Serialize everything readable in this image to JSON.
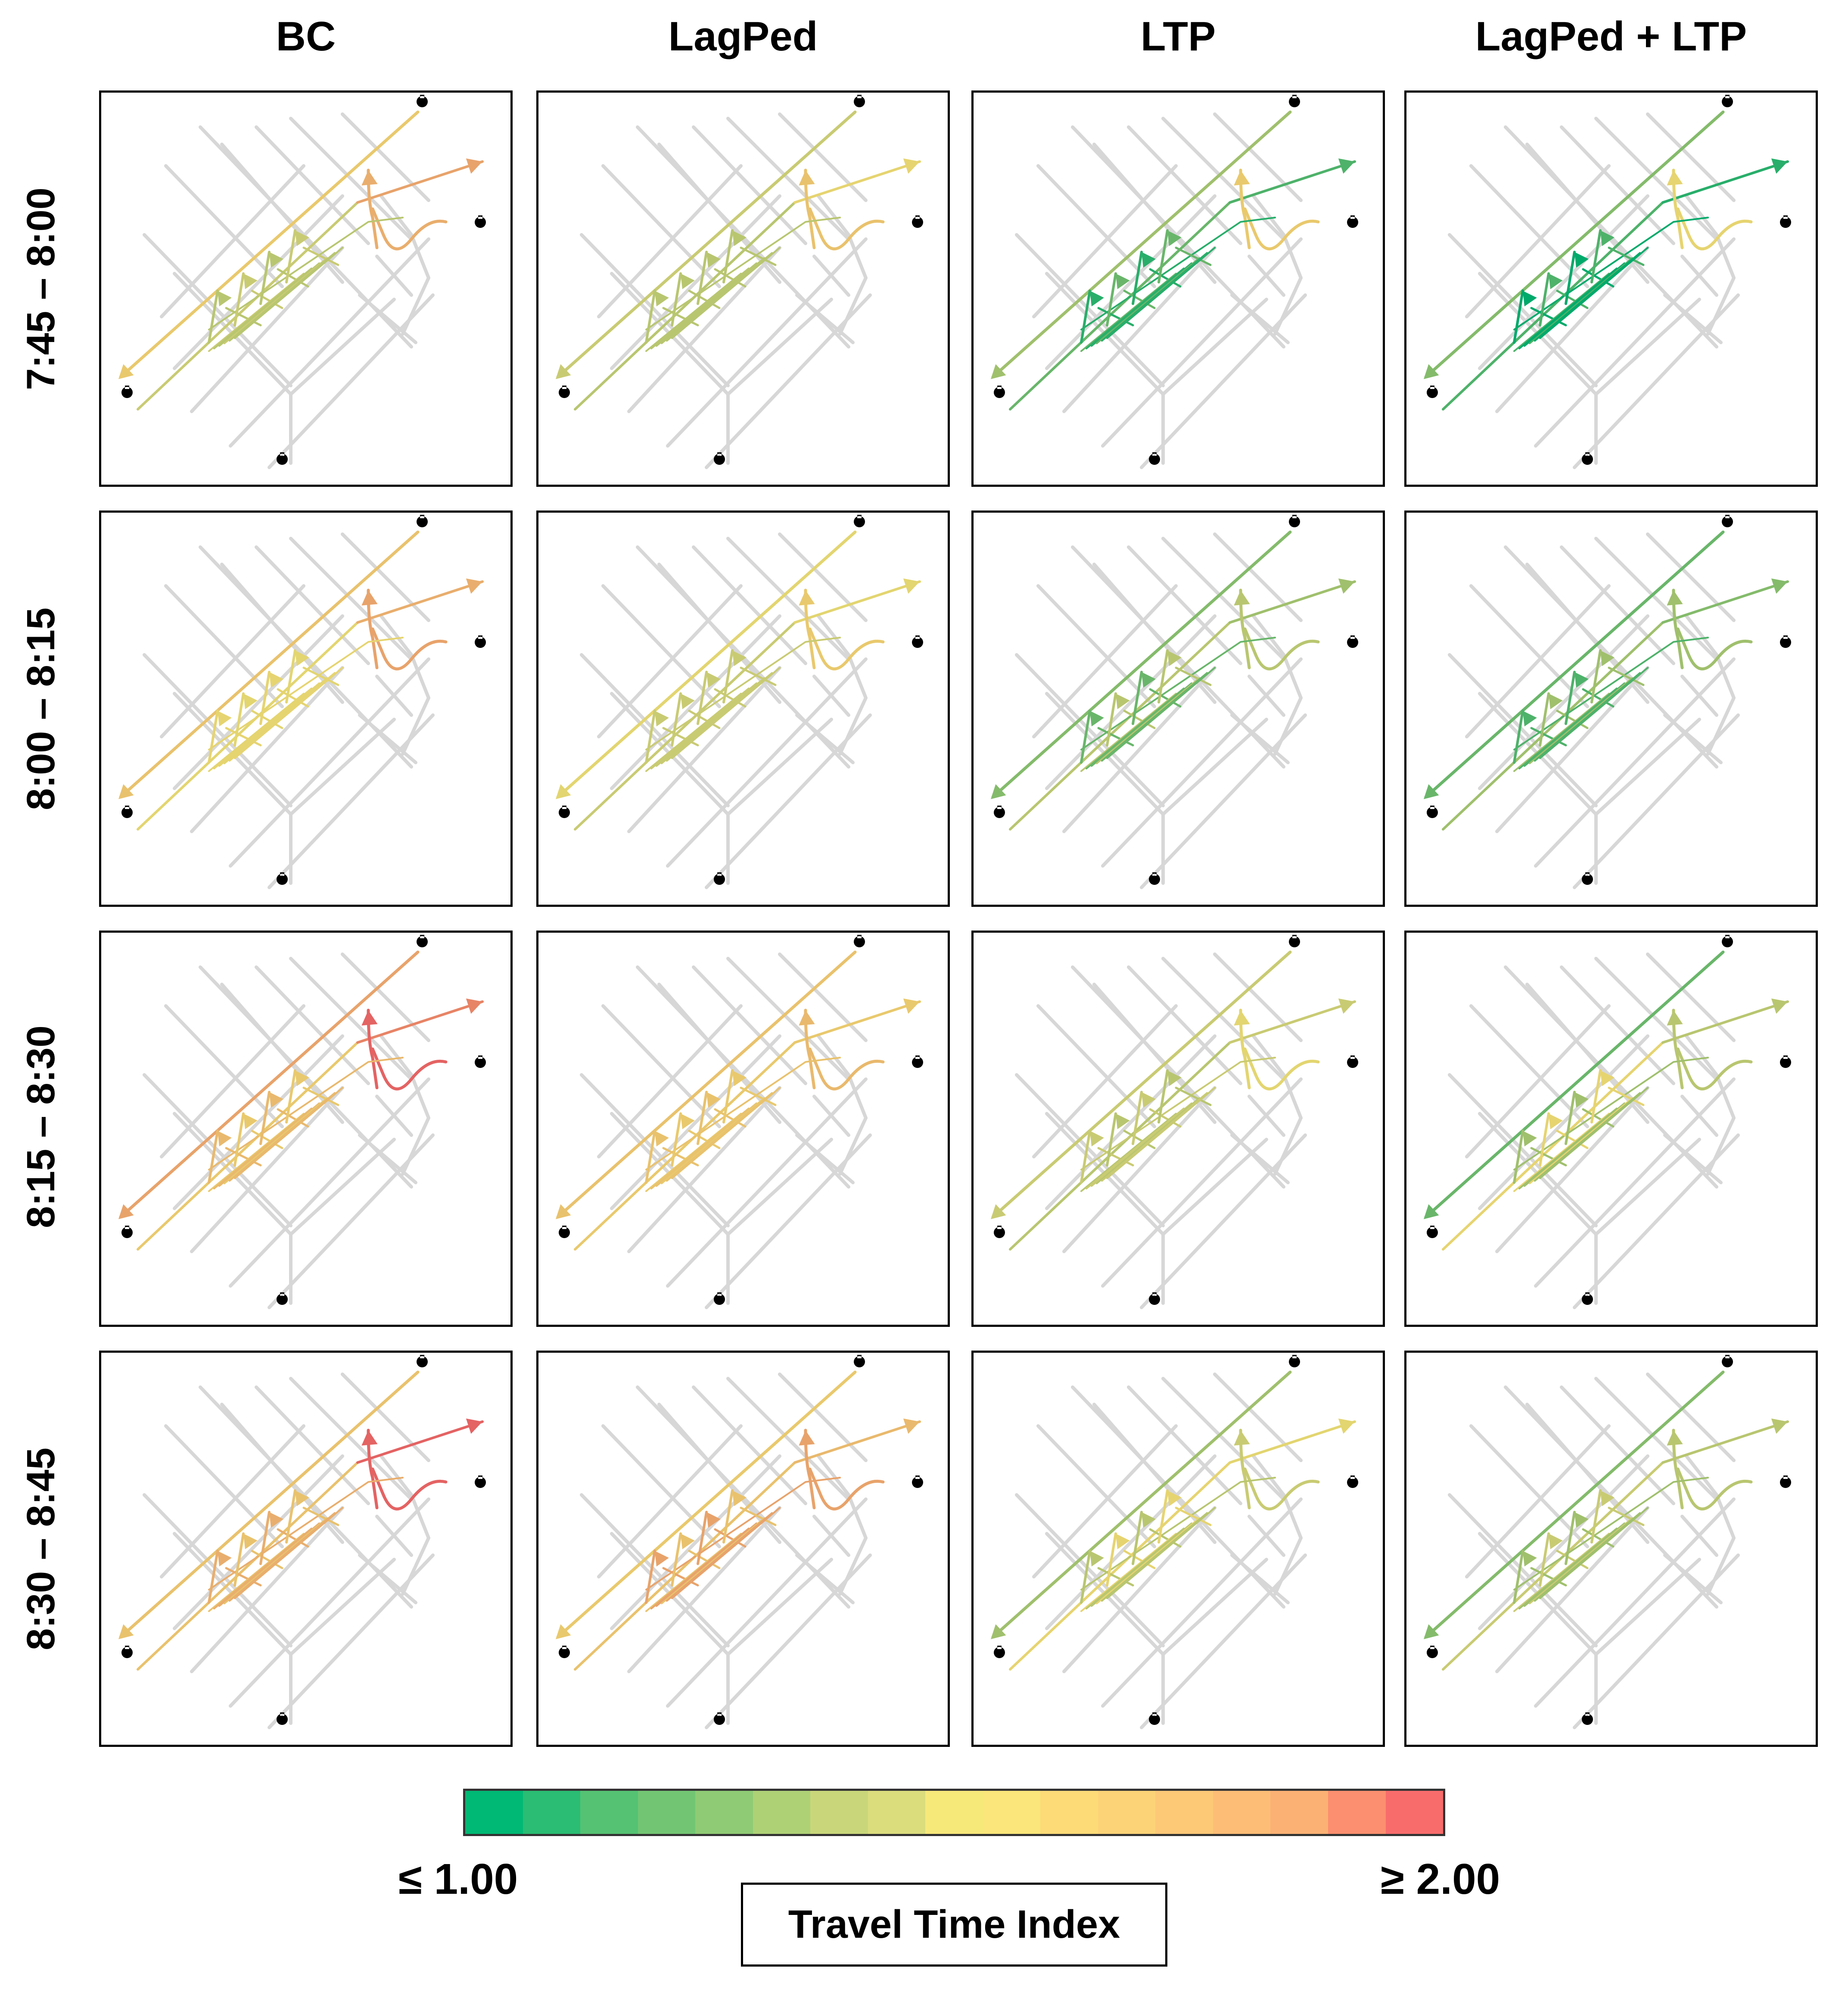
{
  "figure": {
    "columns": [
      "BC",
      "LagPed",
      "LTP",
      "LagPed + LTP"
    ],
    "rows": [
      "7:45 – 8:00",
      "8:00 – 8:15",
      "8:15 – 8:30",
      "8:30 – 8:45"
    ],
    "panels": [
      [
        {
          "main": 1.65,
          "corner": 1.8,
          "right": 1.85,
          "inner": 1.4,
          "low": 1.45
        },
        {
          "main": 1.45,
          "corner": 1.7,
          "right": 1.55,
          "inner": 1.4,
          "low": 1.4
        },
        {
          "main": 1.3,
          "corner": 1.6,
          "right": 1.15,
          "inner": 1.05,
          "low": 1.2
        },
        {
          "main": 1.25,
          "corner": 1.55,
          "right": 1.05,
          "inner": 1.0,
          "low": 1.15
        }
      ],
      [
        {
          "main": 1.7,
          "corner": 1.85,
          "right": 1.8,
          "inner": 1.55,
          "low": 1.5
        },
        {
          "main": 1.5,
          "corner": 1.6,
          "right": 1.5,
          "inner": 1.45,
          "low": 1.45
        },
        {
          "main": 1.25,
          "corner": 1.4,
          "right": 1.3,
          "inner": 1.2,
          "low": 1.35
        },
        {
          "main": 1.2,
          "corner": 1.3,
          "right": 1.25,
          "inner": 1.15,
          "low": 1.3
        }
      ],
      [
        {
          "main": 1.85,
          "corner": 2.0,
          "right": 1.95,
          "inner": 1.75,
          "low": 1.6
        },
        {
          "main": 1.7,
          "corner": 1.75,
          "right": 1.65,
          "inner": 1.7,
          "low": 1.65
        },
        {
          "main": 1.45,
          "corner": 1.5,
          "right": 1.45,
          "inner": 1.45,
          "low": 1.4
        },
        {
          "main": 1.2,
          "corner": 1.35,
          "right": 1.35,
          "inner": 1.3,
          "low": 1.55
        }
      ],
      [
        {
          "main": 1.7,
          "corner": 2.0,
          "right": 2.0,
          "inner": 1.8,
          "low": 1.7
        },
        {
          "main": 1.65,
          "corner": 1.85,
          "right": 1.75,
          "inner": 1.85,
          "low": 1.7
        },
        {
          "main": 1.3,
          "corner": 1.45,
          "right": 1.5,
          "inner": 1.4,
          "low": 1.55
        },
        {
          "main": 1.25,
          "corner": 1.35,
          "right": 1.4,
          "inner": 1.3,
          "low": 1.45
        }
      ]
    ]
  },
  "legend": {
    "min_label": "≤ 1.00",
    "max_label": "≥ 2.00",
    "title": "Travel Time Index",
    "colors": [
      "#00b974",
      "#2bbd73",
      "#55c273",
      "#72c673",
      "#8fcb74",
      "#aed176",
      "#c9d77a",
      "#dbdd7d",
      "#f7e87a",
      "#fae67a",
      "#fddb77",
      "#fdd377",
      "#fdc977",
      "#fdbd76",
      "#fcb174",
      "#fb8f6f",
      "#f86c6c"
    ]
  }
}
